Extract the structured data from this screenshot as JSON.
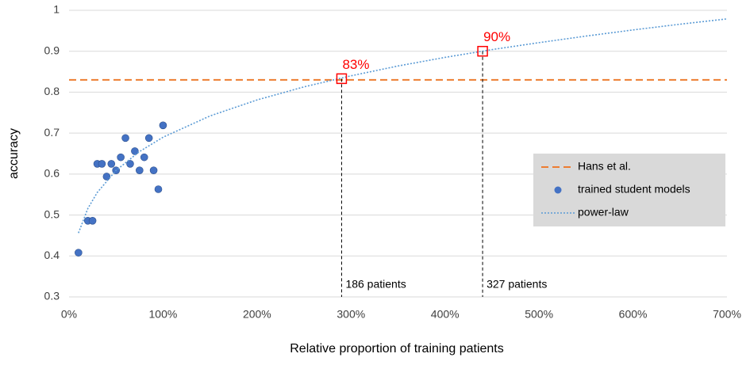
{
  "chart_data": {
    "type": "scatter",
    "x_label": "Relative proportion of training patients",
    "y_label": "accuracy",
    "xlim": [
      0,
      700
    ],
    "ylim": [
      0.3,
      1
    ],
    "xticks": [
      {
        "value": 0,
        "label": "0%"
      },
      {
        "value": 100,
        "label": "100%"
      },
      {
        "value": 200,
        "label": "200%"
      },
      {
        "value": 300,
        "label": "300%"
      },
      {
        "value": 400,
        "label": "400%"
      },
      {
        "value": 500,
        "label": "500%"
      },
      {
        "value": 600,
        "label": "600%"
      },
      {
        "value": 700,
        "label": "700%"
      }
    ],
    "yticks": [
      0.3,
      0.4,
      0.5,
      0.6,
      0.7,
      0.8,
      0.9,
      1
    ],
    "grid": true,
    "legend": "right",
    "series": [
      {
        "name": "Hans et al.",
        "type": "line",
        "dash": "dashed",
        "color": "#ed7d31",
        "x": [
          0,
          700
        ],
        "values": [
          0.83,
          0.83
        ]
      },
      {
        "name": "trained student models",
        "type": "scatter",
        "color": "#4472c4",
        "x": [
          10,
          20,
          25,
          30,
          35,
          40,
          45,
          50,
          55,
          60,
          65,
          70,
          75,
          80,
          85,
          90,
          95,
          100
        ],
        "values": [
          0.408,
          0.486,
          0.486,
          0.625,
          0.625,
          0.594,
          0.625,
          0.609,
          0.641,
          0.688,
          0.625,
          0.656,
          0.609,
          0.641,
          0.688,
          0.609,
          0.563,
          0.719
        ]
      },
      {
        "name": "power-law",
        "type": "line",
        "dash": "dotted",
        "color": "#5b9bd5",
        "x": [
          10,
          20,
          30,
          50,
          75,
          100,
          150,
          200,
          250,
          300,
          350,
          400,
          450,
          500,
          550,
          600,
          650,
          700
        ],
        "values": [
          0.456,
          0.516,
          0.555,
          0.609,
          0.655,
          0.69,
          0.742,
          0.781,
          0.813,
          0.84,
          0.864,
          0.885,
          0.904,
          0.921,
          0.937,
          0.952,
          0.966,
          0.979
        ]
      }
    ],
    "annotations": [
      {
        "x": 290,
        "y": 0.833,
        "label": "83%",
        "note": "186 patients"
      },
      {
        "x": 440,
        "y": 0.9,
        "label": "90%",
        "note": "327 patients"
      }
    ]
  }
}
